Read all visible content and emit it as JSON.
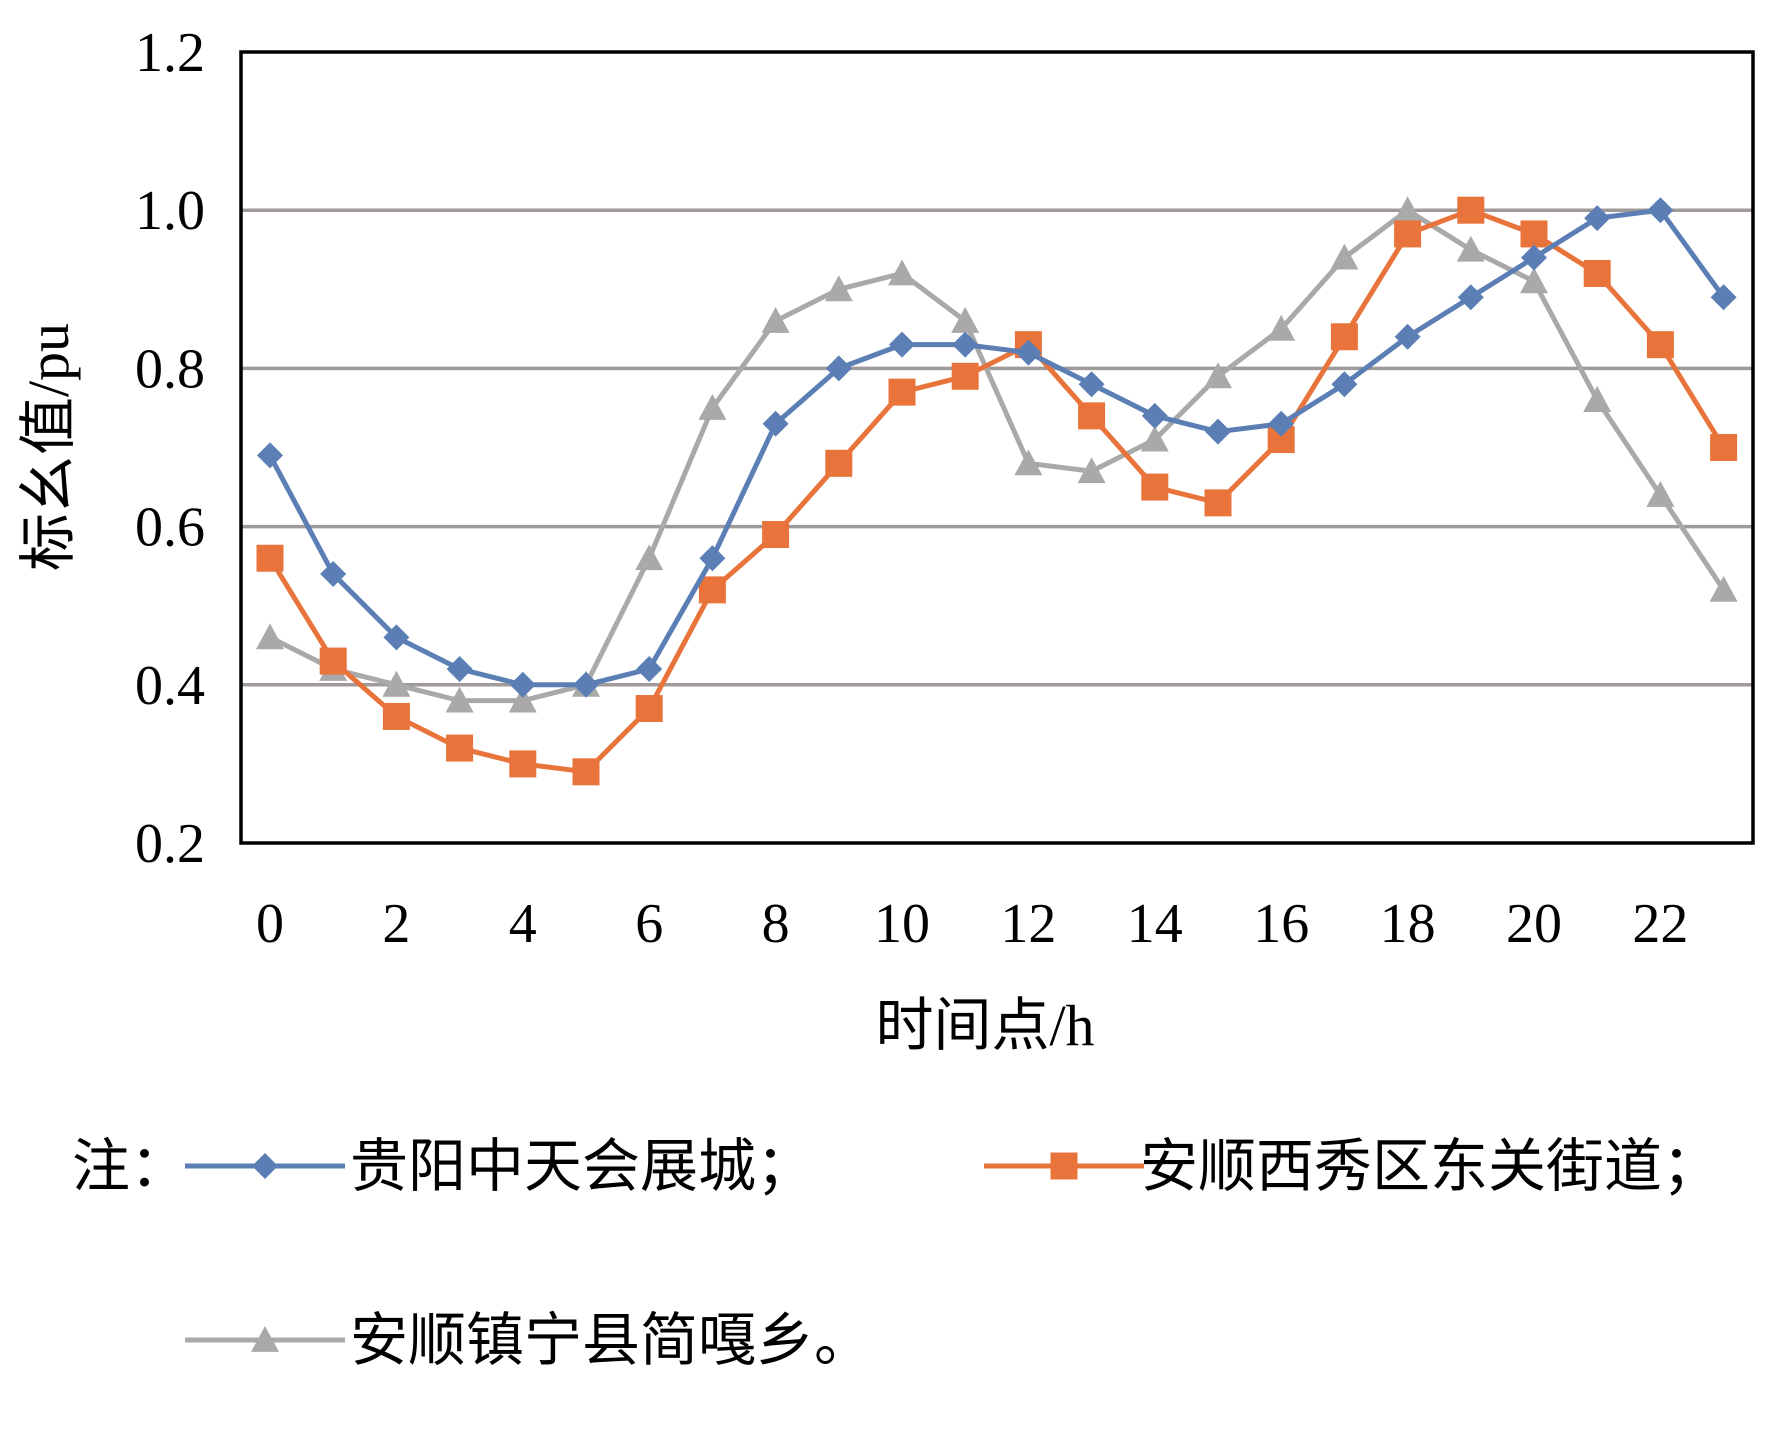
{
  "chart_data": {
    "type": "line",
    "xlabel": "时间点/h",
    "ylabel": "标幺值/pu",
    "xlim": [
      0,
      23
    ],
    "ylim": [
      0.2,
      1.2
    ],
    "xticks": [
      "0",
      "2",
      "4",
      "6",
      "8",
      "10",
      "12",
      "14",
      "16",
      "18",
      "20",
      "22"
    ],
    "yticks": [
      "0.2",
      "0.4",
      "0.6",
      "0.8",
      "1.0",
      "1.2"
    ],
    "grid": true,
    "legend_prefix": "注：",
    "x": [
      0,
      1,
      2,
      3,
      4,
      5,
      6,
      7,
      8,
      9,
      10,
      11,
      12,
      13,
      14,
      15,
      16,
      17,
      18,
      19,
      20,
      21,
      22,
      23
    ],
    "series": [
      {
        "name": "贵阳中天会展城；",
        "color": "#5b7fb5",
        "marker": "diamond",
        "values": [
          0.69,
          0.54,
          0.46,
          0.42,
          0.4,
          0.4,
          0.42,
          0.56,
          0.73,
          0.8,
          0.83,
          0.83,
          0.82,
          0.78,
          0.74,
          0.72,
          0.73,
          0.78,
          0.84,
          0.89,
          0.94,
          0.99,
          1.0,
          0.89
        ]
      },
      {
        "name": "安顺西秀区东关街道；",
        "color": "#e8743b",
        "marker": "square",
        "values": [
          0.56,
          0.43,
          0.36,
          0.32,
          0.3,
          0.29,
          0.37,
          0.52,
          0.59,
          0.68,
          0.77,
          0.79,
          0.83,
          0.74,
          0.65,
          0.63,
          0.71,
          0.84,
          0.97,
          1.0,
          0.97,
          0.92,
          0.83,
          0.7
        ]
      },
      {
        "name": "安顺镇宁县简嘎乡。",
        "color": "#a9a9a9",
        "marker": "triangle",
        "values": [
          0.46,
          0.42,
          0.4,
          0.38,
          0.38,
          0.4,
          0.56,
          0.75,
          0.86,
          0.9,
          0.92,
          0.86,
          0.68,
          0.67,
          0.71,
          0.79,
          0.85,
          0.94,
          1.0,
          0.95,
          0.91,
          0.76,
          0.64,
          0.52
        ]
      }
    ]
  }
}
